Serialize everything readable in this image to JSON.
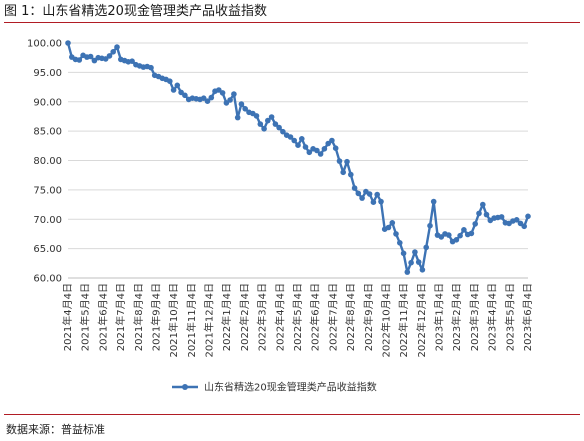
{
  "figure": {
    "caption": "图 1：山东省精选20现金管理类产品收益指数",
    "source": "数据来源：普益标准"
  },
  "colors": {
    "series": "#3d73b4",
    "grid": "#d9d9d9",
    "rule": "#b11c24"
  },
  "chart_data": {
    "type": "line",
    "title": "",
    "xlabel": "",
    "ylabel": "",
    "ylim": [
      60,
      100
    ],
    "yticks": [
      "100.00",
      "95.00",
      "90.00",
      "85.00",
      "80.00",
      "75.00",
      "70.00",
      "65.00",
      "60.00"
    ],
    "grid": "horizontal",
    "legend_position": "bottom",
    "marker": "circle",
    "xtick_labels": [
      "2021年4月4日",
      "2021年5月4日",
      "2021年6月4日",
      "2021年7月4日",
      "2021年8月4日",
      "2021年9月4日",
      "2021年10月4日",
      "2021年11月4日",
      "2021年12月4日",
      "2022年1月4日",
      "2022年2月4日",
      "2022年3月4日",
      "2022年4月4日",
      "2022年5月4日",
      "2022年6月4日",
      "2022年7月4日",
      "2022年8月4日",
      "2022年9月4日",
      "2022年10月4日",
      "2022年11月4日",
      "2022年12月4日",
      "2023年1月4日",
      "2023年2月4日",
      "2023年3月4日",
      "2023年4月4日",
      "2023年5月4日",
      "2023年6月4日"
    ],
    "series": [
      {
        "name": "山东省精选20现金管理类产品收益指数",
        "values": [
          100.0,
          97.6,
          97.2,
          97.1,
          97.9,
          97.6,
          97.7,
          97.0,
          97.5,
          97.4,
          97.3,
          97.8,
          98.5,
          99.3,
          97.2,
          97.0,
          96.8,
          96.9,
          96.3,
          96.1,
          95.9,
          96.0,
          95.8,
          94.5,
          94.3,
          94.0,
          93.8,
          93.5,
          92.0,
          92.8,
          91.6,
          91.1,
          90.4,
          90.6,
          90.5,
          90.4,
          90.6,
          90.1,
          90.7,
          91.8,
          92.0,
          91.5,
          89.8,
          90.3,
          91.3,
          87.3,
          89.6,
          88.8,
          88.2,
          88.0,
          87.6,
          86.2,
          85.4,
          86.8,
          87.4,
          86.2,
          85.6,
          84.9,
          84.3,
          84.0,
          83.4,
          82.6,
          83.7,
          82.3,
          81.4,
          82.0,
          81.7,
          81.1,
          82.0,
          82.9,
          83.4,
          82.1,
          79.9,
          78.0,
          79.8,
          77.6,
          75.3,
          74.4,
          73.6,
          74.7,
          74.3,
          72.9,
          74.2,
          73.0,
          68.3,
          68.6,
          69.4,
          67.5,
          66.0,
          64.2,
          61.0,
          62.6,
          64.4,
          62.7,
          61.4,
          65.2,
          68.9,
          73.0,
          67.3,
          67.0,
          67.5,
          67.3,
          66.2,
          66.5,
          67.2,
          68.2,
          67.4,
          67.6,
          69.2,
          71.0,
          72.5,
          70.8,
          69.8,
          70.2,
          70.3,
          70.4,
          69.4,
          69.3,
          69.7,
          69.9,
          69.3,
          68.8,
          70.5
        ]
      }
    ]
  }
}
